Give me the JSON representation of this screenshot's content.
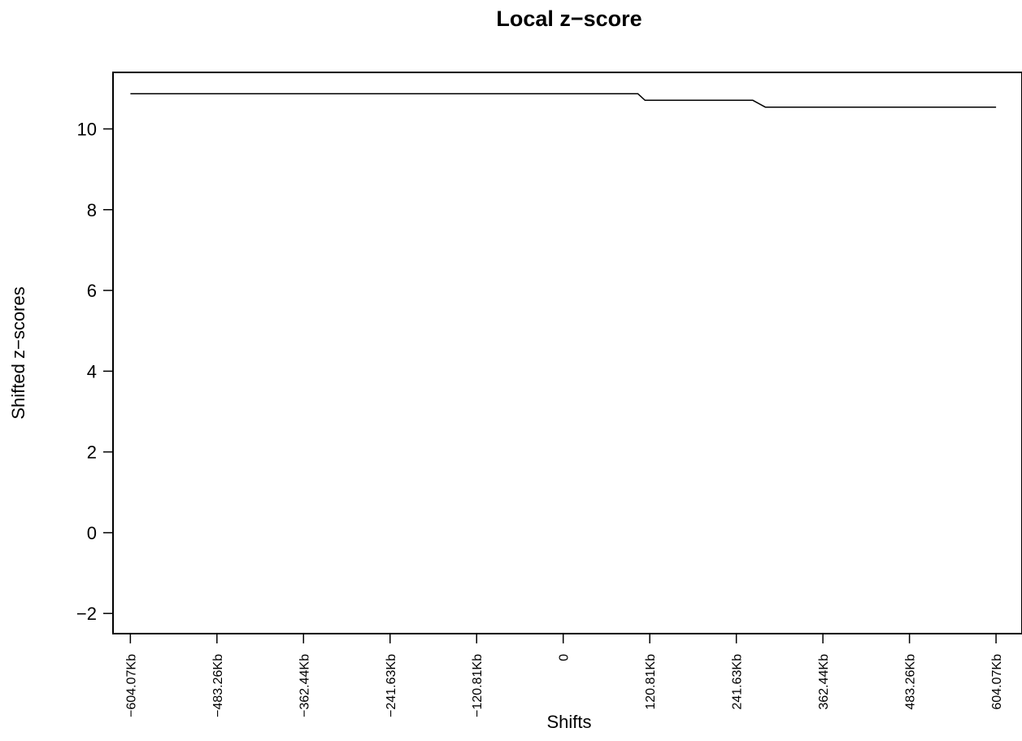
{
  "chart_data": {
    "type": "line",
    "title": "Local z−score",
    "xlabel": "Shifts",
    "ylabel": "Shifted z−scores",
    "x_ticks": [
      {
        "value": -604.07,
        "label": "−604.07Kb"
      },
      {
        "value": -483.26,
        "label": "−483.26Kb"
      },
      {
        "value": -362.44,
        "label": "−362.44Kb"
      },
      {
        "value": -241.63,
        "label": "−241.63Kb"
      },
      {
        "value": -120.81,
        "label": "−120.81Kb"
      },
      {
        "value": 0,
        "label": "0"
      },
      {
        "value": 120.81,
        "label": "120.81Kb"
      },
      {
        "value": 241.63,
        "label": "241.63Kb"
      },
      {
        "value": 362.44,
        "label": "362.44Kb"
      },
      {
        "value": 483.26,
        "label": "483.26Kb"
      },
      {
        "value": 604.07,
        "label": "604.07Kb"
      }
    ],
    "y_ticks": [
      {
        "value": -2,
        "label": "−2"
      },
      {
        "value": 0,
        "label": "0"
      },
      {
        "value": 2,
        "label": "2"
      },
      {
        "value": 4,
        "label": "4"
      },
      {
        "value": 6,
        "label": "6"
      },
      {
        "value": 8,
        "label": "8"
      },
      {
        "value": 10,
        "label": "10"
      }
    ],
    "xlim": [
      -628.3,
      640.3
    ],
    "ylim": [
      -2.5,
      11.4
    ],
    "series": [
      {
        "x": [
          -604.07,
          104.25,
          114.19,
          264.55,
          282.11,
          604.07
        ],
        "y": [
          10.87,
          10.87,
          10.71,
          10.71,
          10.54,
          10.54
        ]
      }
    ],
    "grid": false,
    "legend": "none"
  }
}
